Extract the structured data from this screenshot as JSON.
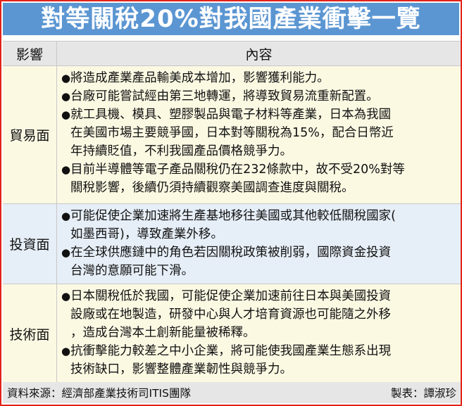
{
  "title": "對等關稅20%對我國產業衝擊一覽",
  "header": {
    "col1": "影響",
    "col2": "內容"
  },
  "rows": [
    {
      "category": "貿易面",
      "bullets": [
        [
          "將造成產業產品輸美成本增加，影響獲利能力。"
        ],
        [
          "台廠可能嘗試經由第三地轉運，將導致貿易流重新配置。"
        ],
        [
          "就工具機、模具、塑膠製品與電子材料等產業，日本為我國",
          "在美國市場主要競爭國，日本對等關稅為15%，配合日幣近",
          "年持續貶值，不利我國產品價格競爭力。"
        ],
        [
          "目前半導體等電子產品關稅仍在232條款中，故不受20%對等",
          "關稅影響，後續仍須持續觀察美國調查進度與關稅。"
        ]
      ]
    },
    {
      "category": "投資面",
      "bullets": [
        [
          "可能促使企業加速將生產基地移往美國或其他較低關稅國家(",
          "如墨西哥)，導致產業外移。"
        ],
        [
          "在全球供應鏈中的角色若因關稅政策被削弱，國際資金投資",
          "台灣的意願可能下滑。"
        ]
      ]
    },
    {
      "category": "技術面",
      "bullets": [
        [
          "日本關稅低於我國，可能促使企業加速前往日本與美國投資",
          "設廠或在地製造，研發中心與人才培育資源也可能隨之外移",
          "，造成台灣本土創新能量被稀釋。"
        ],
        [
          "抗衝擊能力較差之中小企業，將可能使我國產業生態系出現",
          "技術缺口，影響整體產業韌性與競爭力。"
        ]
      ]
    }
  ],
  "footer": {
    "source": "資料來源：經濟部產業技術司ITIS團隊",
    "author": "製表：譚淑珍"
  },
  "colors": {
    "title_bg": "#5b96d2",
    "border": "#e2231a",
    "row_yellow": "#fcf9e3",
    "row_blue": "#e6eef7",
    "header_bg": "#e6e6e6"
  }
}
